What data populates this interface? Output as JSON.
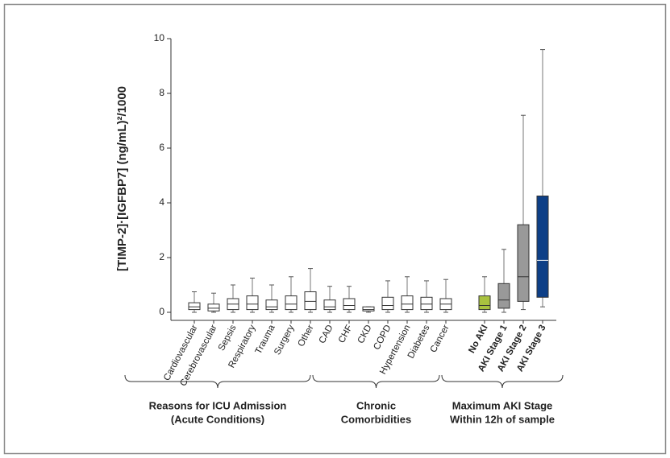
{
  "chart_data": {
    "type": "box",
    "y_label": "[TIMP-2]·[IGFBP7] (ng/mL)²/1000",
    "categories": [
      "Cardiovascular",
      "Cerebrovascular",
      "Sepsis",
      "Respiratory",
      "Trauma",
      "Surgery",
      "Other",
      "CAD",
      "CHF",
      "CKD",
      "COPD",
      "Hypertension",
      "Diabetes",
      "Cancer",
      "No AKI",
      "AKI Stage 1",
      "AKI Stage 2",
      "AKI Stage 3"
    ],
    "min": [
      0,
      0,
      0,
      0,
      0,
      0,
      0,
      0,
      0,
      0,
      0,
      0,
      0,
      0,
      0,
      0,
      0.1,
      0.2
    ],
    "q1": [
      0.1,
      0.05,
      0.1,
      0.1,
      0.1,
      0.1,
      0.1,
      0.1,
      0.1,
      0.05,
      0.1,
      0.1,
      0.1,
      0.1,
      0.1,
      0.15,
      0.4,
      0.55
    ],
    "median": [
      0.2,
      0.15,
      0.3,
      0.3,
      0.2,
      0.3,
      0.4,
      0.2,
      0.25,
      0.1,
      0.25,
      0.3,
      0.3,
      0.3,
      0.25,
      0.45,
      1.3,
      1.9
    ],
    "q3": [
      0.35,
      0.3,
      0.5,
      0.6,
      0.45,
      0.6,
      0.75,
      0.45,
      0.5,
      0.2,
      0.55,
      0.6,
      0.55,
      0.5,
      0.6,
      1.05,
      3.2,
      4.25
    ],
    "max": [
      0.75,
      0.7,
      1.0,
      1.25,
      1.0,
      1.3,
      1.6,
      0.95,
      0.95,
      0.2,
      1.15,
      1.3,
      1.15,
      1.2,
      1.3,
      2.3,
      7.2,
      9.6
    ],
    "colors": [
      "#ffffff",
      "#ffffff",
      "#ffffff",
      "#ffffff",
      "#ffffff",
      "#ffffff",
      "#ffffff",
      "#ffffff",
      "#ffffff",
      "#ffffff",
      "#ffffff",
      "#ffffff",
      "#ffffff",
      "#ffffff",
      "#a9c23f",
      "#999999",
      "#999999",
      "#0d3f87"
    ],
    "ylim": [
      0,
      10
    ],
    "yticks": [
      0,
      2,
      4,
      6,
      8,
      10
    ],
    "groups": [
      {
        "lines": [
          "Reasons for ICU Admission",
          "(Acute Conditions)"
        ]
      },
      {
        "lines": [
          "Chronic",
          "Comorbidities"
        ]
      },
      {
        "lines": [
          "Maximum AKI Stage",
          "Within 12h of sample"
        ]
      }
    ]
  }
}
